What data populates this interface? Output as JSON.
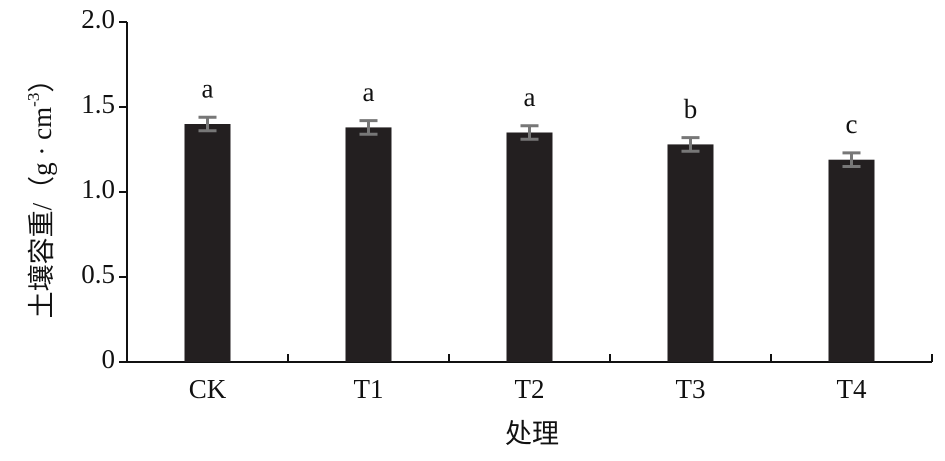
{
  "chart_data": {
    "type": "bar",
    "y_label": {
      "main": "土壤容重/（g · cm",
      "sup": "-3",
      "close": "）"
    },
    "x_label": "处理",
    "categories": [
      "CK",
      "T1",
      "T2",
      "T3",
      "T4"
    ],
    "values": [
      1.4,
      1.38,
      1.35,
      1.28,
      1.19
    ],
    "errors": [
      0.04,
      0.04,
      0.04,
      0.04,
      0.04
    ],
    "letters": [
      "a",
      "a",
      "a",
      "b",
      "c"
    ],
    "color": "#231f20",
    "error_color": "#777777",
    "ylim": [
      0,
      2
    ],
    "yticks": [
      0,
      0.5,
      {
        "value": 1,
        "label": "1.0"
      },
      1.5,
      {
        "value": 2,
        "label": "2.0"
      }
    ]
  }
}
